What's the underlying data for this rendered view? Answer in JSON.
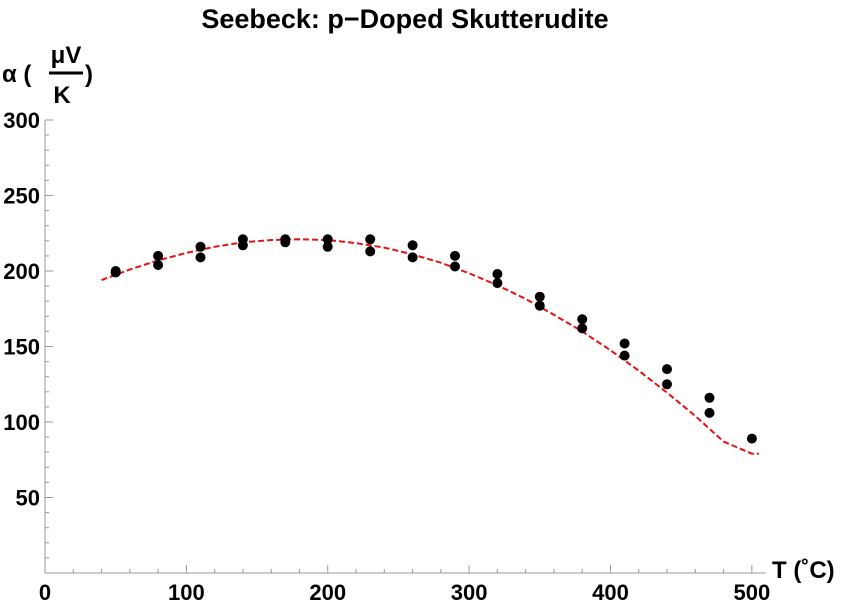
{
  "chart_data": {
    "type": "scatter",
    "title": "Seebeck: p−Doped Skutterudite",
    "xlabel": "T (˚C)",
    "ylabel": {
      "symbol": "α (",
      "numerator": "μV",
      "denominator": "K",
      "close": ")"
    },
    "xlim": [
      0,
      510
    ],
    "ylim": [
      0,
      300
    ],
    "xticks": [
      0,
      100,
      200,
      300,
      400,
      500
    ],
    "yticks": [
      50,
      100,
      150,
      200,
      250,
      300
    ],
    "xtick_labels": [
      "0",
      "100",
      "200",
      "300",
      "400",
      "500"
    ],
    "ytick_labels": [
      "50",
      "100",
      "150",
      "200",
      "250",
      "300"
    ],
    "grid": false,
    "series": [
      {
        "kind": "scatter",
        "color": "#000000",
        "points": [
          [
            50,
            199
          ],
          [
            50,
            200
          ],
          [
            80,
            204
          ],
          [
            80,
            210
          ],
          [
            110,
            209
          ],
          [
            110,
            216
          ],
          [
            140,
            217
          ],
          [
            140,
            221
          ],
          [
            170,
            219
          ],
          [
            170,
            221
          ],
          [
            200,
            216
          ],
          [
            200,
            221
          ],
          [
            230,
            213
          ],
          [
            230,
            221
          ],
          [
            260,
            209
          ],
          [
            260,
            217
          ],
          [
            290,
            203
          ],
          [
            290,
            210
          ],
          [
            320,
            192
          ],
          [
            320,
            198
          ],
          [
            350,
            177
          ],
          [
            350,
            183
          ],
          [
            380,
            162
          ],
          [
            380,
            168
          ],
          [
            410,
            144
          ],
          [
            410,
            152
          ],
          [
            440,
            125
          ],
          [
            440,
            135
          ],
          [
            470,
            106
          ],
          [
            470,
            116
          ],
          [
            500,
            89
          ]
        ]
      },
      {
        "kind": "fit-curve",
        "color": "#e81010",
        "style": "dashed",
        "points": [
          [
            40,
            194
          ],
          [
            60,
            201
          ],
          [
            80,
            207
          ],
          [
            100,
            212
          ],
          [
            120,
            216
          ],
          [
            140,
            219
          ],
          [
            160,
            220.5
          ],
          [
            180,
            221
          ],
          [
            200,
            220.5
          ],
          [
            220,
            218.5
          ],
          [
            240,
            215.5
          ],
          [
            260,
            211
          ],
          [
            280,
            205.5
          ],
          [
            300,
            198.5
          ],
          [
            320,
            190.5
          ],
          [
            340,
            181.5
          ],
          [
            360,
            171
          ],
          [
            380,
            160
          ],
          [
            400,
            147.5
          ],
          [
            420,
            134
          ],
          [
            440,
            119.5
          ],
          [
            460,
            104
          ],
          [
            480,
            87
          ],
          [
            500,
            79
          ],
          [
            505,
            79
          ]
        ]
      }
    ]
  }
}
